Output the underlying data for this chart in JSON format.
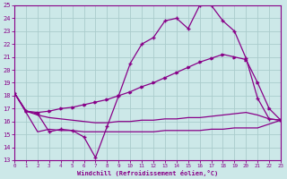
{
  "xlabel": "Windchill (Refroidissement éolien,°C)",
  "bg_color": "#cce8e8",
  "grid_color": "#aacccc",
  "line_color": "#880088",
  "xmin": 0,
  "xmax": 23,
  "ymin": 13,
  "ymax": 25,
  "xticks": [
    0,
    1,
    2,
    3,
    4,
    5,
    6,
    7,
    8,
    9,
    10,
    11,
    12,
    13,
    14,
    15,
    16,
    17,
    18,
    19,
    20,
    21,
    22,
    23
  ],
  "yticks": [
    13,
    14,
    15,
    16,
    17,
    18,
    19,
    20,
    21,
    22,
    23,
    24,
    25
  ],
  "line1_x": [
    0,
    1,
    2,
    3,
    4,
    5,
    6,
    7,
    8,
    9,
    10,
    11,
    12,
    13,
    14,
    15,
    16,
    17,
    18,
    19,
    20,
    21,
    22,
    23
  ],
  "line1_y": [
    18.2,
    16.8,
    16.6,
    15.2,
    15.4,
    15.3,
    14.8,
    13.2,
    15.6,
    18.0,
    20.5,
    22.0,
    22.5,
    23.8,
    24.0,
    23.2,
    25.0,
    25.0,
    23.8,
    23.0,
    20.9,
    17.8,
    16.2,
    16.1
  ],
  "line2_x": [
    0,
    1,
    2,
    3,
    4,
    5,
    6,
    7,
    8,
    9,
    10,
    11,
    12,
    13,
    14,
    15,
    16,
    17,
    18,
    19,
    20,
    21,
    22,
    23
  ],
  "line2_y": [
    18.2,
    16.8,
    16.7,
    16.8,
    17.0,
    17.1,
    17.3,
    17.5,
    17.7,
    18.0,
    18.3,
    18.7,
    19.0,
    19.4,
    19.8,
    20.2,
    20.6,
    20.9,
    21.2,
    21.0,
    20.8,
    19.0,
    17.0,
    16.1
  ],
  "line3_x": [
    0,
    1,
    2,
    3,
    4,
    5,
    6,
    7,
    8,
    9,
    10,
    11,
    12,
    13,
    14,
    15,
    16,
    17,
    18,
    19,
    20,
    21,
    22,
    23
  ],
  "line3_y": [
    18.2,
    16.8,
    16.5,
    16.3,
    16.2,
    16.1,
    16.0,
    15.9,
    15.9,
    16.0,
    16.0,
    16.1,
    16.1,
    16.2,
    16.2,
    16.3,
    16.3,
    16.4,
    16.5,
    16.6,
    16.7,
    16.5,
    16.2,
    16.1
  ],
  "line4_x": [
    0,
    2,
    3,
    4,
    5,
    6,
    7,
    8,
    9,
    10,
    11,
    12,
    13,
    14,
    15,
    16,
    17,
    18,
    19,
    20,
    21,
    22,
    23
  ],
  "line4_y": [
    18.2,
    15.2,
    15.4,
    15.3,
    15.3,
    15.2,
    15.2,
    15.2,
    15.2,
    15.2,
    15.2,
    15.2,
    15.3,
    15.3,
    15.3,
    15.3,
    15.4,
    15.4,
    15.5,
    15.5,
    15.5,
    15.8,
    16.1
  ]
}
